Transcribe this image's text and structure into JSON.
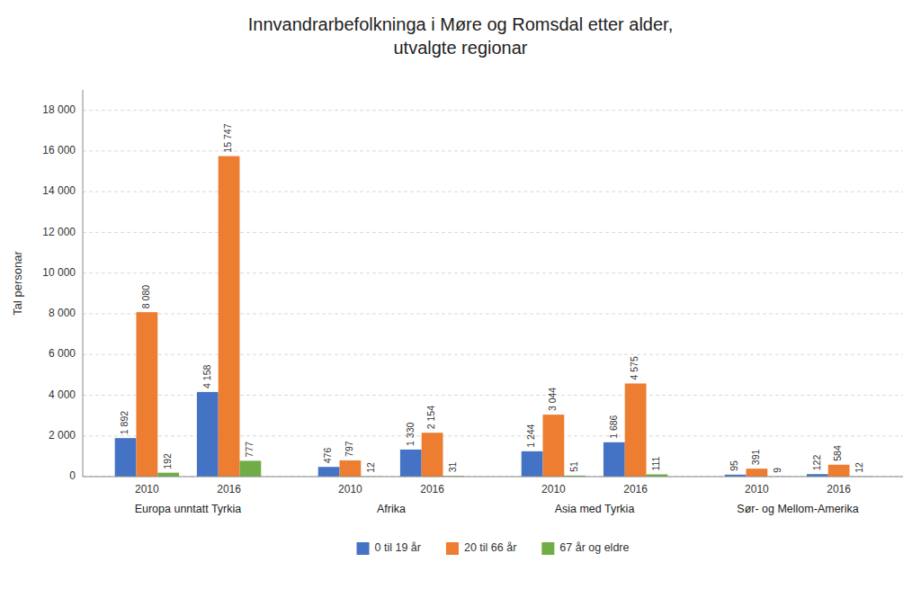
{
  "chart_data": {
    "type": "bar",
    "title": "Innvandrarbefolkninga i Møre og Romsdal etter alder,\nutvalgte regionar",
    "y_label": "Tal personar",
    "categories": [
      "2010",
      "2016",
      "2010",
      "2016",
      "2010",
      "2016",
      "2010",
      "2016"
    ],
    "annotations": [
      "Europa unntatt Tyrkia",
      "Afrika",
      "Asia med Tyrkia",
      "Sør- og Mellom-Amerika"
    ],
    "series": [
      {
        "name": "0 til 19 år",
        "color": "#4472c4",
        "values": [
          1892,
          4158,
          476,
          1330,
          1244,
          1686,
          95,
          122
        ],
        "value_labels": [
          "1 892",
          "4 158",
          "476",
          "1 330",
          "1 244",
          "1 686",
          "95",
          "122"
        ]
      },
      {
        "name": "20 til 66 år",
        "color": "#ed7d31",
        "values": [
          8080,
          15747,
          797,
          2154,
          3044,
          4575,
          391,
          584
        ],
        "value_labels": [
          "8 080",
          "15 747",
          "797",
          "2 154",
          "3 044",
          "4 575",
          "391",
          "584"
        ]
      },
      {
        "name": "67 år og eldre",
        "color": "#70ad47",
        "values": [
          192,
          777,
          12,
          31,
          51,
          111,
          9,
          12
        ],
        "value_labels": [
          "192",
          "777",
          "12",
          "31",
          "51",
          "111",
          "9",
          "12"
        ]
      }
    ],
    "ylim": [
      0,
      19000
    ],
    "yticks": [
      0,
      {
        "value": 2000,
        "label": "2 000"
      },
      {
        "value": 4000,
        "label": "4 000"
      },
      {
        "value": 6000,
        "label": "6 000"
      },
      {
        "value": 8000,
        "label": "8 000"
      },
      {
        "value": 10000,
        "label": "10 000"
      },
      {
        "value": 12000,
        "label": "12 000"
      },
      {
        "value": 14000,
        "label": "14 000"
      },
      {
        "value": 16000,
        "label": "16 000"
      },
      {
        "value": 18000,
        "label": "18 000"
      }
    ],
    "grid": true,
    "data_labels": true,
    "legend": "bottom"
  }
}
